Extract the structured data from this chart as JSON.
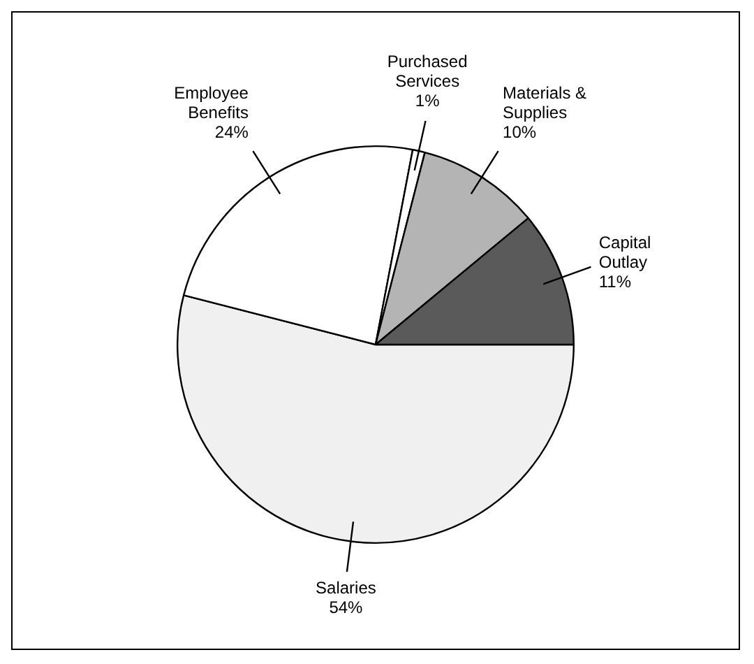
{
  "chart_data": {
    "type": "pie",
    "categories": [
      "Salaries",
      "Employee Benefits",
      "Purchased Services",
      "Materials & Supplies",
      "Capital Outlay"
    ],
    "values": [
      54,
      24,
      1,
      10,
      11
    ],
    "value_labels": [
      "54%",
      "24%",
      "1%",
      "10%",
      "11%"
    ],
    "colors": [
      "#f0f0f0",
      "#ffffff",
      "#ffffff",
      "#b4b4b4",
      "#5a5a5a"
    ],
    "legend": false
  }
}
